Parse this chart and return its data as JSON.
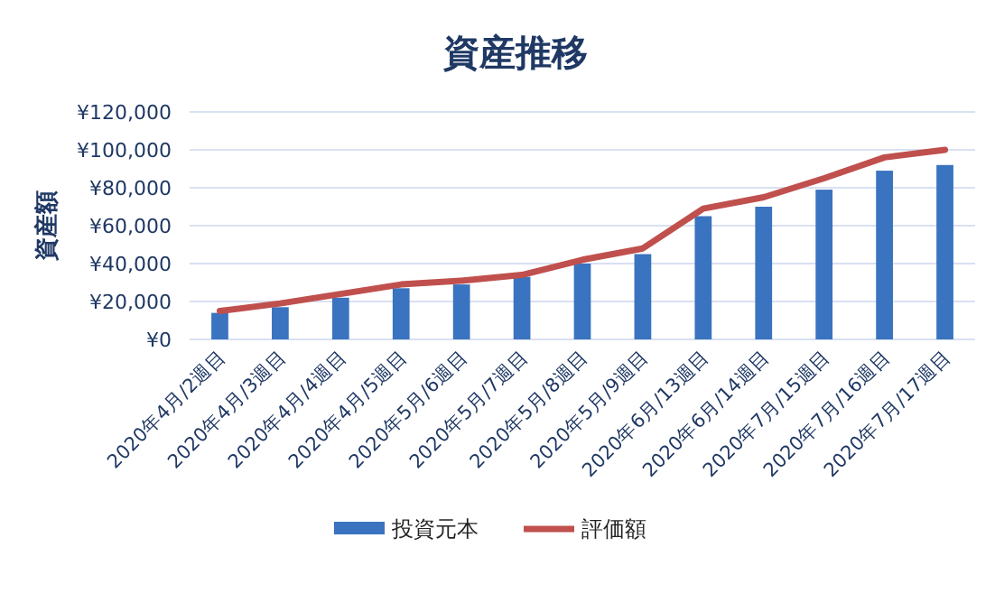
{
  "chart_data": {
    "type": "bar",
    "title": "資産推移",
    "ylabel": "資産額",
    "categories": [
      "2020年4月/2週目",
      "2020年4月/3週目",
      "2020年4月/4週目",
      "2020年4月/5週目",
      "2020年5月/6週目",
      "2020年5月/7週目",
      "2020年5月/8週目",
      "2020年5月/9週目",
      "2020年6月/13週目",
      "2020年6月/14週目",
      "2020年7月/15週目",
      "2020年7月/16週目",
      "2020年7月/17週目"
    ],
    "series": [
      {
        "name": "投資元本",
        "color": "#3a73bf",
        "values": [
          14000,
          17000,
          22000,
          27000,
          29000,
          33000,
          40000,
          45000,
          65000,
          70000,
          79000,
          89000,
          92000
        ]
      },
      {
        "name": "評価額",
        "type": "line",
        "color": "#c0504d",
        "values": [
          15000,
          19000,
          24000,
          29000,
          31000,
          34000,
          42000,
          48000,
          69000,
          75000,
          85000,
          96000,
          100000
        ]
      }
    ],
    "ylim": [
      0,
      120000
    ],
    "yticks": [
      {
        "value": 0,
        "label": "¥0"
      },
      {
        "value": 20000,
        "label": "¥20,000"
      },
      {
        "value": 40000,
        "label": "¥40,000"
      },
      {
        "value": 60000,
        "label": "¥60,000"
      },
      {
        "value": 80000,
        "label": "¥80,000"
      },
      {
        "value": 100000,
        "label": "¥100,000"
      },
      {
        "value": 120000,
        "label": "¥120,000"
      }
    ],
    "grid": "y",
    "legend": "bottom",
    "marker": "none",
    "line_style": "solid"
  }
}
